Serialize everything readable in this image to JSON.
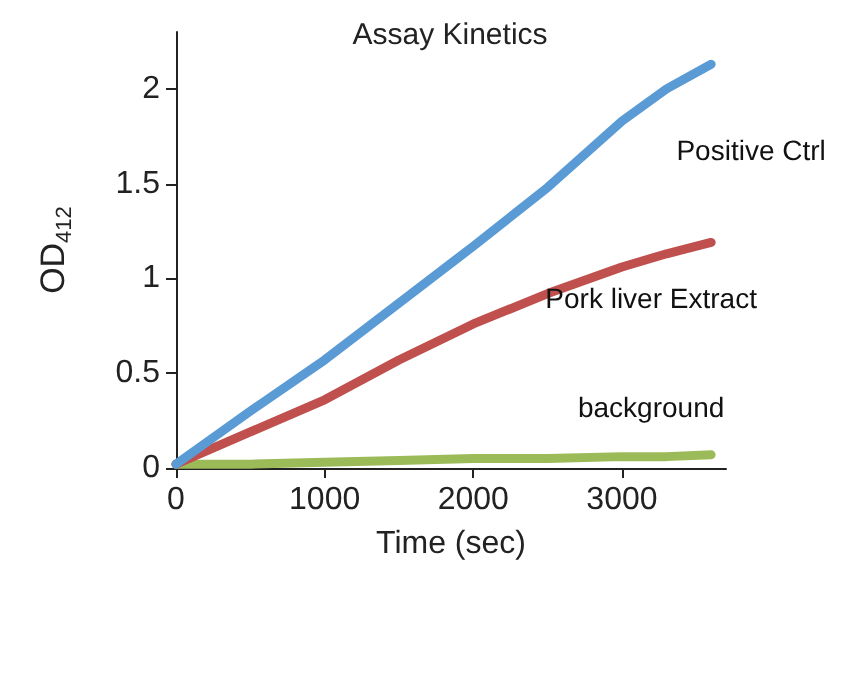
{
  "chart_data": {
    "type": "line",
    "title": "Assay Kinetics",
    "xlabel": "Time (sec)",
    "ylabel": "OD$_{412}$",
    "x": [
      0,
      500,
      1000,
      1500,
      2000,
      2500,
      3000,
      3300,
      3600
    ],
    "series": [
      {
        "name": "Positive Ctrl",
        "color": "#5b9bd5",
        "values": [
          0.02,
          0.3,
          0.57,
          0.87,
          1.17,
          1.48,
          1.83,
          2.0,
          2.13
        ]
      },
      {
        "name": "Pork liver Extract",
        "color": "#c0504d",
        "values": [
          0.02,
          0.19,
          0.36,
          0.57,
          0.76,
          0.92,
          1.06,
          1.13,
          1.19
        ]
      },
      {
        "name": "background",
        "color": "#9bbb59",
        "values": [
          0.02,
          0.02,
          0.03,
          0.04,
          0.05,
          0.05,
          0.06,
          0.06,
          0.07
        ]
      }
    ],
    "xlim": [
      0,
      3700
    ],
    "xticks": [
      0,
      1000,
      2000,
      3000
    ],
    "ylim": [
      0,
      2.3
    ],
    "yticks": [
      0,
      0.5,
      1,
      1.5,
      2
    ],
    "grid": false,
    "legend": false,
    "marker": "none",
    "line_style": "solid"
  }
}
